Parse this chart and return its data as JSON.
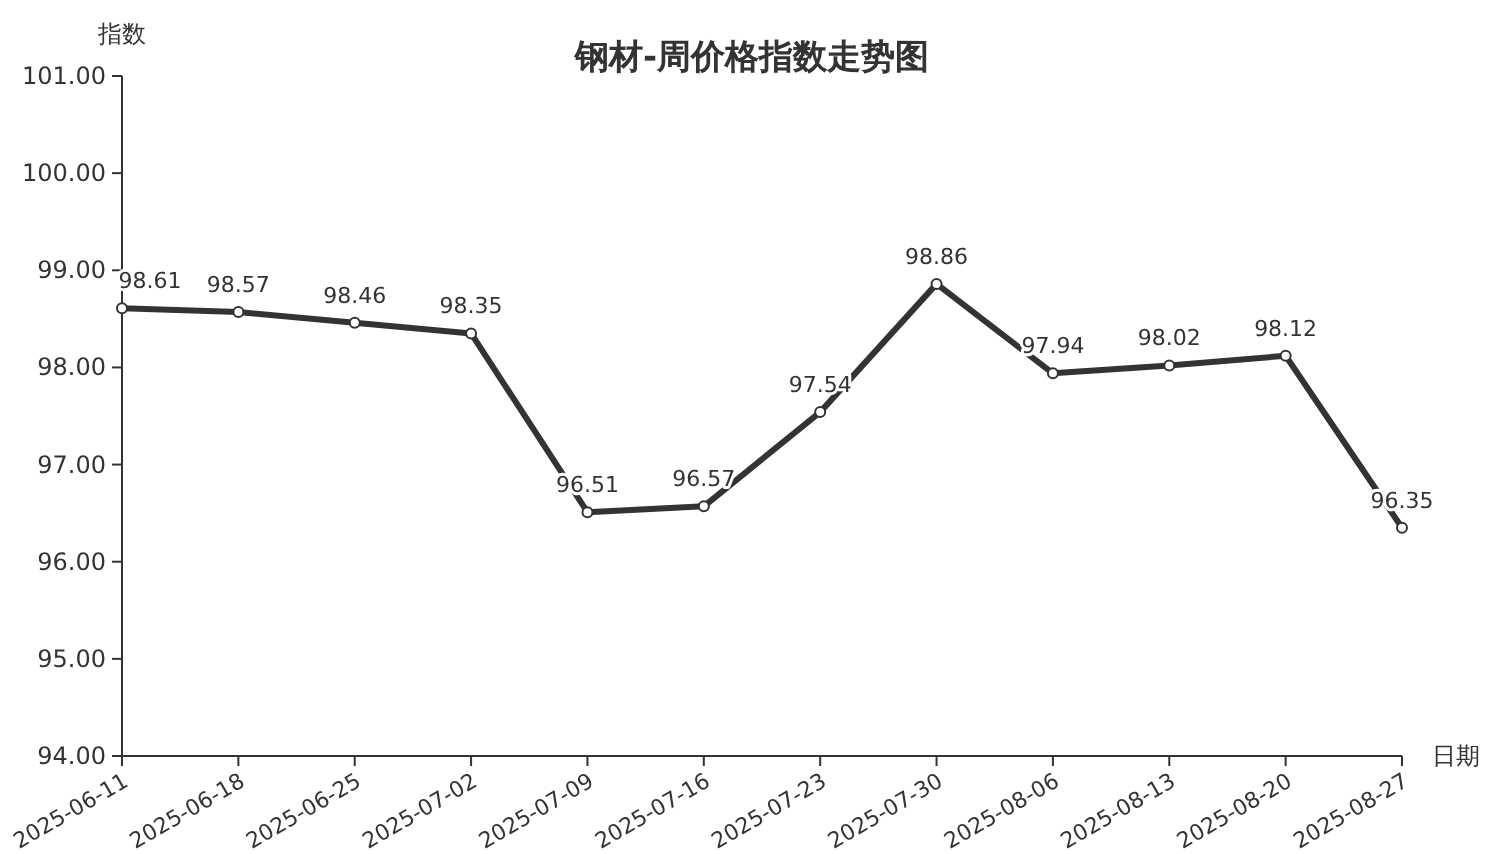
{
  "chart_data": {
    "type": "line",
    "title": "钢材-周价格指数走势图",
    "xlabel": "日期",
    "ylabel": "指数",
    "categories": [
      "2025-06-11",
      "2025-06-18",
      "2025-06-25",
      "2025-07-02",
      "2025-07-09",
      "2025-07-16",
      "2025-07-23",
      "2025-07-30",
      "2025-08-06",
      "2025-08-13",
      "2025-08-20",
      "2025-08-27"
    ],
    "series": [
      {
        "color": "#333333",
        "values": [
          98.61,
          98.57,
          98.46,
          98.35,
          96.51,
          96.57,
          97.54,
          98.86,
          97.94,
          98.02,
          98.12,
          96.35
        ]
      }
    ],
    "ylim": [
      94,
      101
    ],
    "yticks": [
      {
        "value": 94,
        "label": "94.00"
      },
      {
        "value": 95,
        "label": "95.00"
      },
      {
        "value": 96,
        "label": "96.00"
      },
      {
        "value": 97,
        "label": "97.00"
      },
      {
        "value": 98,
        "label": "98.00"
      },
      {
        "value": 99,
        "label": "99.00"
      },
      {
        "value": 100,
        "label": "100.00"
      },
      {
        "value": 101,
        "label": "101.00"
      }
    ],
    "data_labels": true,
    "marker": "circle",
    "line_style": "solid",
    "grid": false
  }
}
